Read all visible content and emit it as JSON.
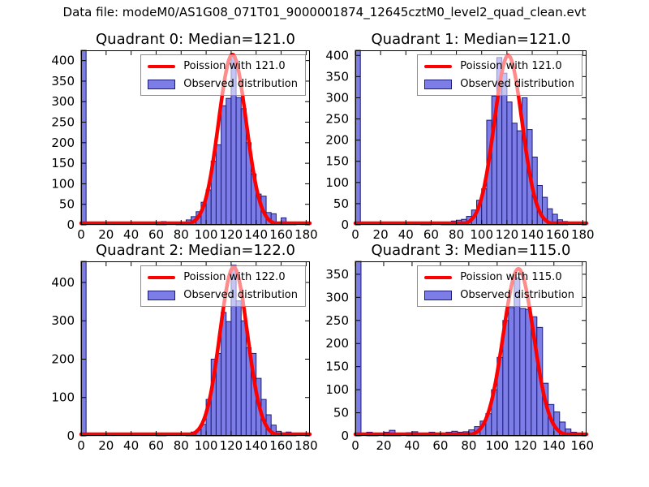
{
  "figure": {
    "title": "Data file: modeM0/AS1G08_071T01_9000001874_12645cztM0_level2_quad_clean.evt",
    "background": "#ffffff",
    "colors": {
      "bar_fill": "#7d7de8",
      "bar_edge": "#1c1c78",
      "curve": "#ff0000",
      "axes": "#000000",
      "text": "#000000",
      "legend_border": "#8c8c8c"
    }
  },
  "chart_data": [
    {
      "type": "bar",
      "subtype": "histogram-with-poisson-fit",
      "title": "Quadrant 0: Median=121.0",
      "quadrant": 0,
      "median": 121.0,
      "legend": {
        "position": "upper right",
        "entries": [
          "Poission with 121.0",
          "Observed distribution"
        ]
      },
      "xlim": [
        0,
        183
      ],
      "ylim": [
        0,
        425
      ],
      "xticks": [
        0,
        20,
        40,
        60,
        80,
        100,
        120,
        140,
        160,
        180
      ],
      "yticks": [
        0,
        50,
        100,
        150,
        200,
        250,
        300,
        350,
        400
      ],
      "grid": false,
      "bin_width": 4,
      "zero_bin_clipped_at_top": true,
      "bars_x_height": [
        [
          0,
          425
        ],
        [
          60,
          3
        ],
        [
          64,
          8
        ],
        [
          76,
          3
        ],
        [
          80,
          4
        ],
        [
          84,
          12
        ],
        [
          88,
          20
        ],
        [
          92,
          32
        ],
        [
          96,
          55
        ],
        [
          100,
          85
        ],
        [
          104,
          155
        ],
        [
          108,
          195
        ],
        [
          112,
          290
        ],
        [
          116,
          308
        ],
        [
          120,
          410
        ],
        [
          124,
          310
        ],
        [
          128,
          283
        ],
        [
          132,
          200
        ],
        [
          136,
          124
        ],
        [
          140,
          75
        ],
        [
          144,
          70
        ],
        [
          148,
          30
        ],
        [
          152,
          27
        ],
        [
          156,
          6
        ],
        [
          160,
          17
        ],
        [
          164,
          6
        ],
        [
          168,
          3
        ]
      ],
      "poisson_curve": {
        "mu": 121.0,
        "sigma": 11.0,
        "peak": 415
      }
    },
    {
      "type": "bar",
      "subtype": "histogram-with-poisson-fit",
      "title": "Quadrant 1: Median=121.0",
      "quadrant": 1,
      "median": 121.0,
      "legend": {
        "position": "upper right",
        "entries": [
          "Poission with 121.0",
          "Observed distribution"
        ]
      },
      "xlim": [
        0,
        183
      ],
      "ylim": [
        0,
        412
      ],
      "xticks": [
        0,
        20,
        40,
        60,
        80,
        100,
        120,
        140,
        160,
        180
      ],
      "yticks": [
        0,
        50,
        100,
        150,
        200,
        250,
        300,
        350,
        400
      ],
      "grid": false,
      "bin_width": 4,
      "zero_bin_clipped_at_top": true,
      "bars_x_height": [
        [
          0,
          412
        ],
        [
          52,
          5
        ],
        [
          56,
          4
        ],
        [
          68,
          6
        ],
        [
          72,
          5
        ],
        [
          76,
          9
        ],
        [
          80,
          11
        ],
        [
          84,
          13
        ],
        [
          88,
          20
        ],
        [
          92,
          35
        ],
        [
          96,
          58
        ],
        [
          100,
          85
        ],
        [
          104,
          247
        ],
        [
          108,
          304
        ],
        [
          112,
          395
        ],
        [
          116,
          358
        ],
        [
          120,
          290
        ],
        [
          124,
          240
        ],
        [
          128,
          222
        ],
        [
          132,
          300
        ],
        [
          136,
          225
        ],
        [
          140,
          160
        ],
        [
          144,
          93
        ],
        [
          148,
          65
        ],
        [
          152,
          38
        ],
        [
          156,
          25
        ],
        [
          160,
          12
        ],
        [
          164,
          8
        ]
      ],
      "poisson_curve": {
        "mu": 121.0,
        "sigma": 11.0,
        "peak": 400
      }
    },
    {
      "type": "bar",
      "subtype": "histogram-with-poisson-fit",
      "title": "Quadrant 2: Median=122.0",
      "quadrant": 2,
      "median": 122.0,
      "legend": {
        "position": "upper right",
        "entries": [
          "Poission with 122.0",
          "Observed distribution"
        ]
      },
      "xlim": [
        0,
        183
      ],
      "ylim": [
        0,
        455
      ],
      "xticks": [
        0,
        20,
        40,
        60,
        80,
        100,
        120,
        140,
        160,
        180
      ],
      "yticks": [
        0,
        100,
        200,
        300,
        400
      ],
      "grid": false,
      "bin_width": 4,
      "zero_bin_clipped_at_top": true,
      "bars_x_height": [
        [
          0,
          455
        ],
        [
          60,
          4
        ],
        [
          64,
          6
        ],
        [
          84,
          6
        ],
        [
          88,
          10
        ],
        [
          92,
          16
        ],
        [
          96,
          30
        ],
        [
          100,
          95
        ],
        [
          104,
          200
        ],
        [
          108,
          215
        ],
        [
          112,
          322
        ],
        [
          116,
          298
        ],
        [
          120,
          445
        ],
        [
          124,
          352
        ],
        [
          128,
          300
        ],
        [
          132,
          230
        ],
        [
          136,
          215
        ],
        [
          140,
          150
        ],
        [
          144,
          95
        ],
        [
          148,
          55
        ],
        [
          152,
          28
        ],
        [
          156,
          12
        ],
        [
          160,
          8
        ],
        [
          164,
          10
        ],
        [
          168,
          4
        ]
      ],
      "poisson_curve": {
        "mu": 122.0,
        "sigma": 11.0,
        "peak": 440
      }
    },
    {
      "type": "bar",
      "subtype": "histogram-with-poisson-fit",
      "title": "Quadrant 3: Median=115.0",
      "quadrant": 3,
      "median": 115.0,
      "legend": {
        "position": "upper right",
        "entries": [
          "Poission with 115.0",
          "Observed distribution"
        ]
      },
      "xlim": [
        0,
        163
      ],
      "ylim": [
        0,
        378
      ],
      "xticks": [
        0,
        20,
        40,
        60,
        80,
        100,
        120,
        140,
        160
      ],
      "yticks": [
        0,
        50,
        100,
        150,
        200,
        250,
        300,
        350
      ],
      "grid": false,
      "bin_width": 4,
      "zero_bin_clipped_at_top": true,
      "bars_x_height": [
        [
          0,
          378
        ],
        [
          8,
          8
        ],
        [
          12,
          5
        ],
        [
          20,
          8
        ],
        [
          24,
          12
        ],
        [
          28,
          6
        ],
        [
          36,
          7
        ],
        [
          40,
          9
        ],
        [
          44,
          5
        ],
        [
          48,
          4
        ],
        [
          52,
          8
        ],
        [
          56,
          5
        ],
        [
          60,
          4
        ],
        [
          64,
          8
        ],
        [
          68,
          10
        ],
        [
          72,
          8
        ],
        [
          76,
          9
        ],
        [
          80,
          13
        ],
        [
          84,
          20
        ],
        [
          88,
          32
        ],
        [
          92,
          48
        ],
        [
          96,
          100
        ],
        [
          100,
          170
        ],
        [
          104,
          250
        ],
        [
          108,
          278
        ],
        [
          112,
          342
        ],
        [
          116,
          276
        ],
        [
          120,
          274
        ],
        [
          124,
          258
        ],
        [
          128,
          235
        ],
        [
          132,
          114
        ],
        [
          136,
          68
        ],
        [
          140,
          52
        ],
        [
          144,
          30
        ],
        [
          148,
          15
        ],
        [
          152,
          8
        ],
        [
          156,
          6
        ]
      ],
      "poisson_curve": {
        "mu": 115.0,
        "sigma": 10.7,
        "peak": 362
      }
    }
  ]
}
